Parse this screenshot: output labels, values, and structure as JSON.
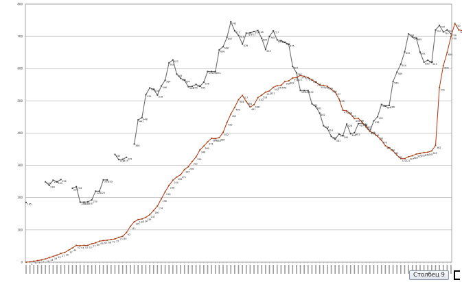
{
  "chart_data": {
    "type": "line",
    "ylim": [
      0,
      800
    ],
    "yticks": [
      0,
      100,
      200,
      300,
      400,
      500,
      600,
      700,
      800
    ],
    "grid": true,
    "series": [
      {
        "color": "#6b6b6b",
        "values": [
          185,
          null,
          null,
          null,
          null,
          249,
          238,
          254,
          249,
          256,
          null,
          null,
          229,
          234,
          186,
          186,
          187,
          193,
          220,
          220,
          255,
          255,
          null,
          334,
          318,
          319,
          325,
          null,
          366,
          441,
          448,
          519,
          540,
          536,
          518,
          546,
          564,
          618,
          627,
          583,
          570,
          564,
          544,
          545,
          551,
          545,
          558,
          591,
          591,
          591,
          658,
          668,
          697,
          745,
          717,
          703,
          676,
          710,
          711,
          715,
          718,
          694,
          659,
          700,
          717,
          689,
          687,
          681,
          675,
          607,
          587,
          532,
          532,
          532,
          491,
          482,
          462,
          423,
          414,
          390,
          381,
          397,
          392,
          428,
          398,
          401,
          429,
          431,
          423,
          406,
          438,
          451,
          489,
          484,
          486,
          560,
          589,
          614,
          652,
          708,
          698,
          695,
          651,
          620,
          626,
          619,
          720,
          734,
          714,
          720,
          708
        ]
      },
      {
        "color": "#b22a1f",
        "values": [
          0,
          null,
          null,
          null,
          null,
          null,
          null,
          null,
          null,
          null,
          null,
          null,
          null,
          null,
          null,
          null,
          null,
          null,
          null,
          null,
          null,
          null,
          null,
          null,
          null,
          null,
          null,
          null,
          null,
          null,
          null,
          null,
          null,
          null,
          null,
          null,
          null,
          null,
          null,
          null,
          null,
          null,
          null,
          null,
          null,
          null,
          null,
          null,
          null,
          null,
          null,
          null,
          null,
          null,
          null,
          null,
          null,
          null,
          null,
          null,
          null,
          null,
          null,
          null,
          null,
          null,
          null,
          null,
          null,
          null,
          null,
          null,
          null,
          null,
          null,
          null,
          null,
          null,
          null,
          null,
          null,
          null,
          null,
          null,
          null,
          null,
          null,
          null,
          null,
          null,
          null,
          null,
          null,
          null,
          null,
          null,
          null,
          null,
          null,
          null,
          null,
          null,
          null,
          null,
          null,
          null,
          null,
          null,
          null,
          null,
          null
        ]
      },
      {
        "color": "#d8c866",
        "values": [
          0,
          1,
          3,
          5,
          7,
          10,
          14,
          18,
          22,
          27,
          30,
          37,
          44,
          52,
          51,
          52,
          52,
          57,
          60,
          65,
          67,
          68,
          70,
          72,
          77,
          80,
          92,
          111,
          125,
          132,
          134,
          139,
          147,
          160,
          174,
          196,
          218,
          238,
          254,
          264,
          271,
          287,
          296,
          312,
          326,
          348,
          360,
          373,
          384,
          383,
          386,
          402,
          433,
          459,
          480,
          504,
          517,
          498,
          481,
          488,
          510,
          518,
          527,
          531,
          542,
          547,
          548,
          560,
          562,
          571,
          572,
          579,
          576,
          572,
          565,
          558,
          549,
          548,
          545,
          536,
          527,
          506,
          471,
          469,
          459,
          445,
          446,
          434,
          419,
          405,
          400,
          390,
          378,
          361,
          354,
          345,
          332,
          321,
          321,
          327,
          330,
          335,
          337,
          340,
          341,
          345,
          362,
          541,
          609,
          650,
          700,
          740,
          720,
          718
        ]
      },
      {
        "color": "#b22a1f",
        "values": [
          0,
          1,
          3,
          5,
          7,
          10,
          14,
          18,
          22,
          27,
          30,
          37,
          44,
          52,
          51,
          52,
          52,
          57,
          60,
          65,
          67,
          68,
          70,
          72,
          77,
          80,
          92,
          111,
          125,
          132,
          134,
          139,
          147,
          160,
          174,
          196,
          218,
          238,
          254,
          264,
          271,
          287,
          296,
          312,
          326,
          348,
          360,
          373,
          384,
          383,
          386,
          402,
          433,
          459,
          480,
          504,
          517,
          498,
          481,
          488,
          510,
          518,
          527,
          531,
          542,
          547,
          548,
          560,
          562,
          571,
          572,
          579,
          576,
          572,
          565,
          558,
          549,
          548,
          545,
          536,
          527,
          506,
          471,
          469,
          459,
          445,
          446,
          434,
          419,
          405,
          400,
          390,
          378,
          361,
          354,
          345,
          332,
          321,
          321,
          327,
          330,
          335,
          337,
          340,
          341,
          345,
          362,
          541,
          609,
          650,
          700,
          740,
          720,
          718
        ]
      }
    ],
    "data_labels": {
      "series1": [
        "185",
        "249",
        "238",
        "254",
        "249",
        "256",
        "229",
        "234",
        "186",
        "186",
        "187",
        "193",
        "220",
        "220",
        "255",
        "255",
        "334",
        "318",
        "319",
        "325",
        "366",
        "441",
        "448",
        "519",
        "540",
        "536",
        "518",
        "546",
        "564",
        "618",
        "627",
        "583",
        "570",
        "564",
        "544",
        "545",
        "551",
        "545",
        "558",
        "591",
        "591",
        "591",
        "658",
        "668",
        "697",
        "745",
        "717",
        "703",
        "676",
        "710",
        "711",
        "715",
        "718",
        "694",
        "659",
        "700",
        "717",
        "689",
        "687",
        "681",
        "675",
        "607",
        "587",
        "532",
        "532",
        "532",
        "491",
        "482",
        "462",
        "423",
        "414",
        "390",
        "381",
        "397",
        "392",
        "428",
        "398",
        "401",
        "429",
        "431",
        "423",
        "406",
        "438",
        "451",
        "489",
        "484",
        "486",
        "560",
        "589",
        "614",
        "652",
        "708",
        "698",
        "695",
        "651",
        "620",
        "626",
        "619",
        "720",
        "734",
        "714",
        "720",
        "708"
      ],
      "series3": [
        "1",
        "3",
        "5",
        "7",
        "10",
        "14",
        "18",
        "22",
        "27",
        "30",
        "37",
        "44",
        "52",
        "51",
        "52",
        "52",
        "57",
        "60",
        "65",
        "67",
        "68",
        "70",
        "72",
        "77",
        "80",
        "92",
        "111",
        "125",
        "132",
        "134",
        "139",
        "147",
        "160",
        "174",
        "196",
        "218",
        "238",
        "254",
        "264",
        "271",
        "287",
        "296",
        "312",
        "326",
        "348",
        "360",
        "373",
        "384",
        "383",
        "386",
        "402",
        "433",
        "459",
        "480",
        "504",
        "517",
        "498",
        "481",
        "488",
        "510",
        "518",
        "527",
        "531",
        "542",
        "547",
        "548",
        "560",
        "562",
        "571",
        "572",
        "579",
        "576",
        "572",
        "565",
        "558",
        "549",
        "548",
        "545",
        "536",
        "527",
        "506",
        "471",
        "469",
        "459",
        "445",
        "446",
        "434",
        "419",
        "405",
        "400",
        "390",
        "378",
        "361",
        "354",
        "345",
        "332",
        "321",
        "321",
        "327",
        "330",
        "335",
        "337",
        "340",
        "341",
        "345",
        "362",
        "541",
        "609",
        "650",
        "700",
        "740",
        "720",
        "718"
      ]
    },
    "legend_label": "Столбец 9"
  }
}
